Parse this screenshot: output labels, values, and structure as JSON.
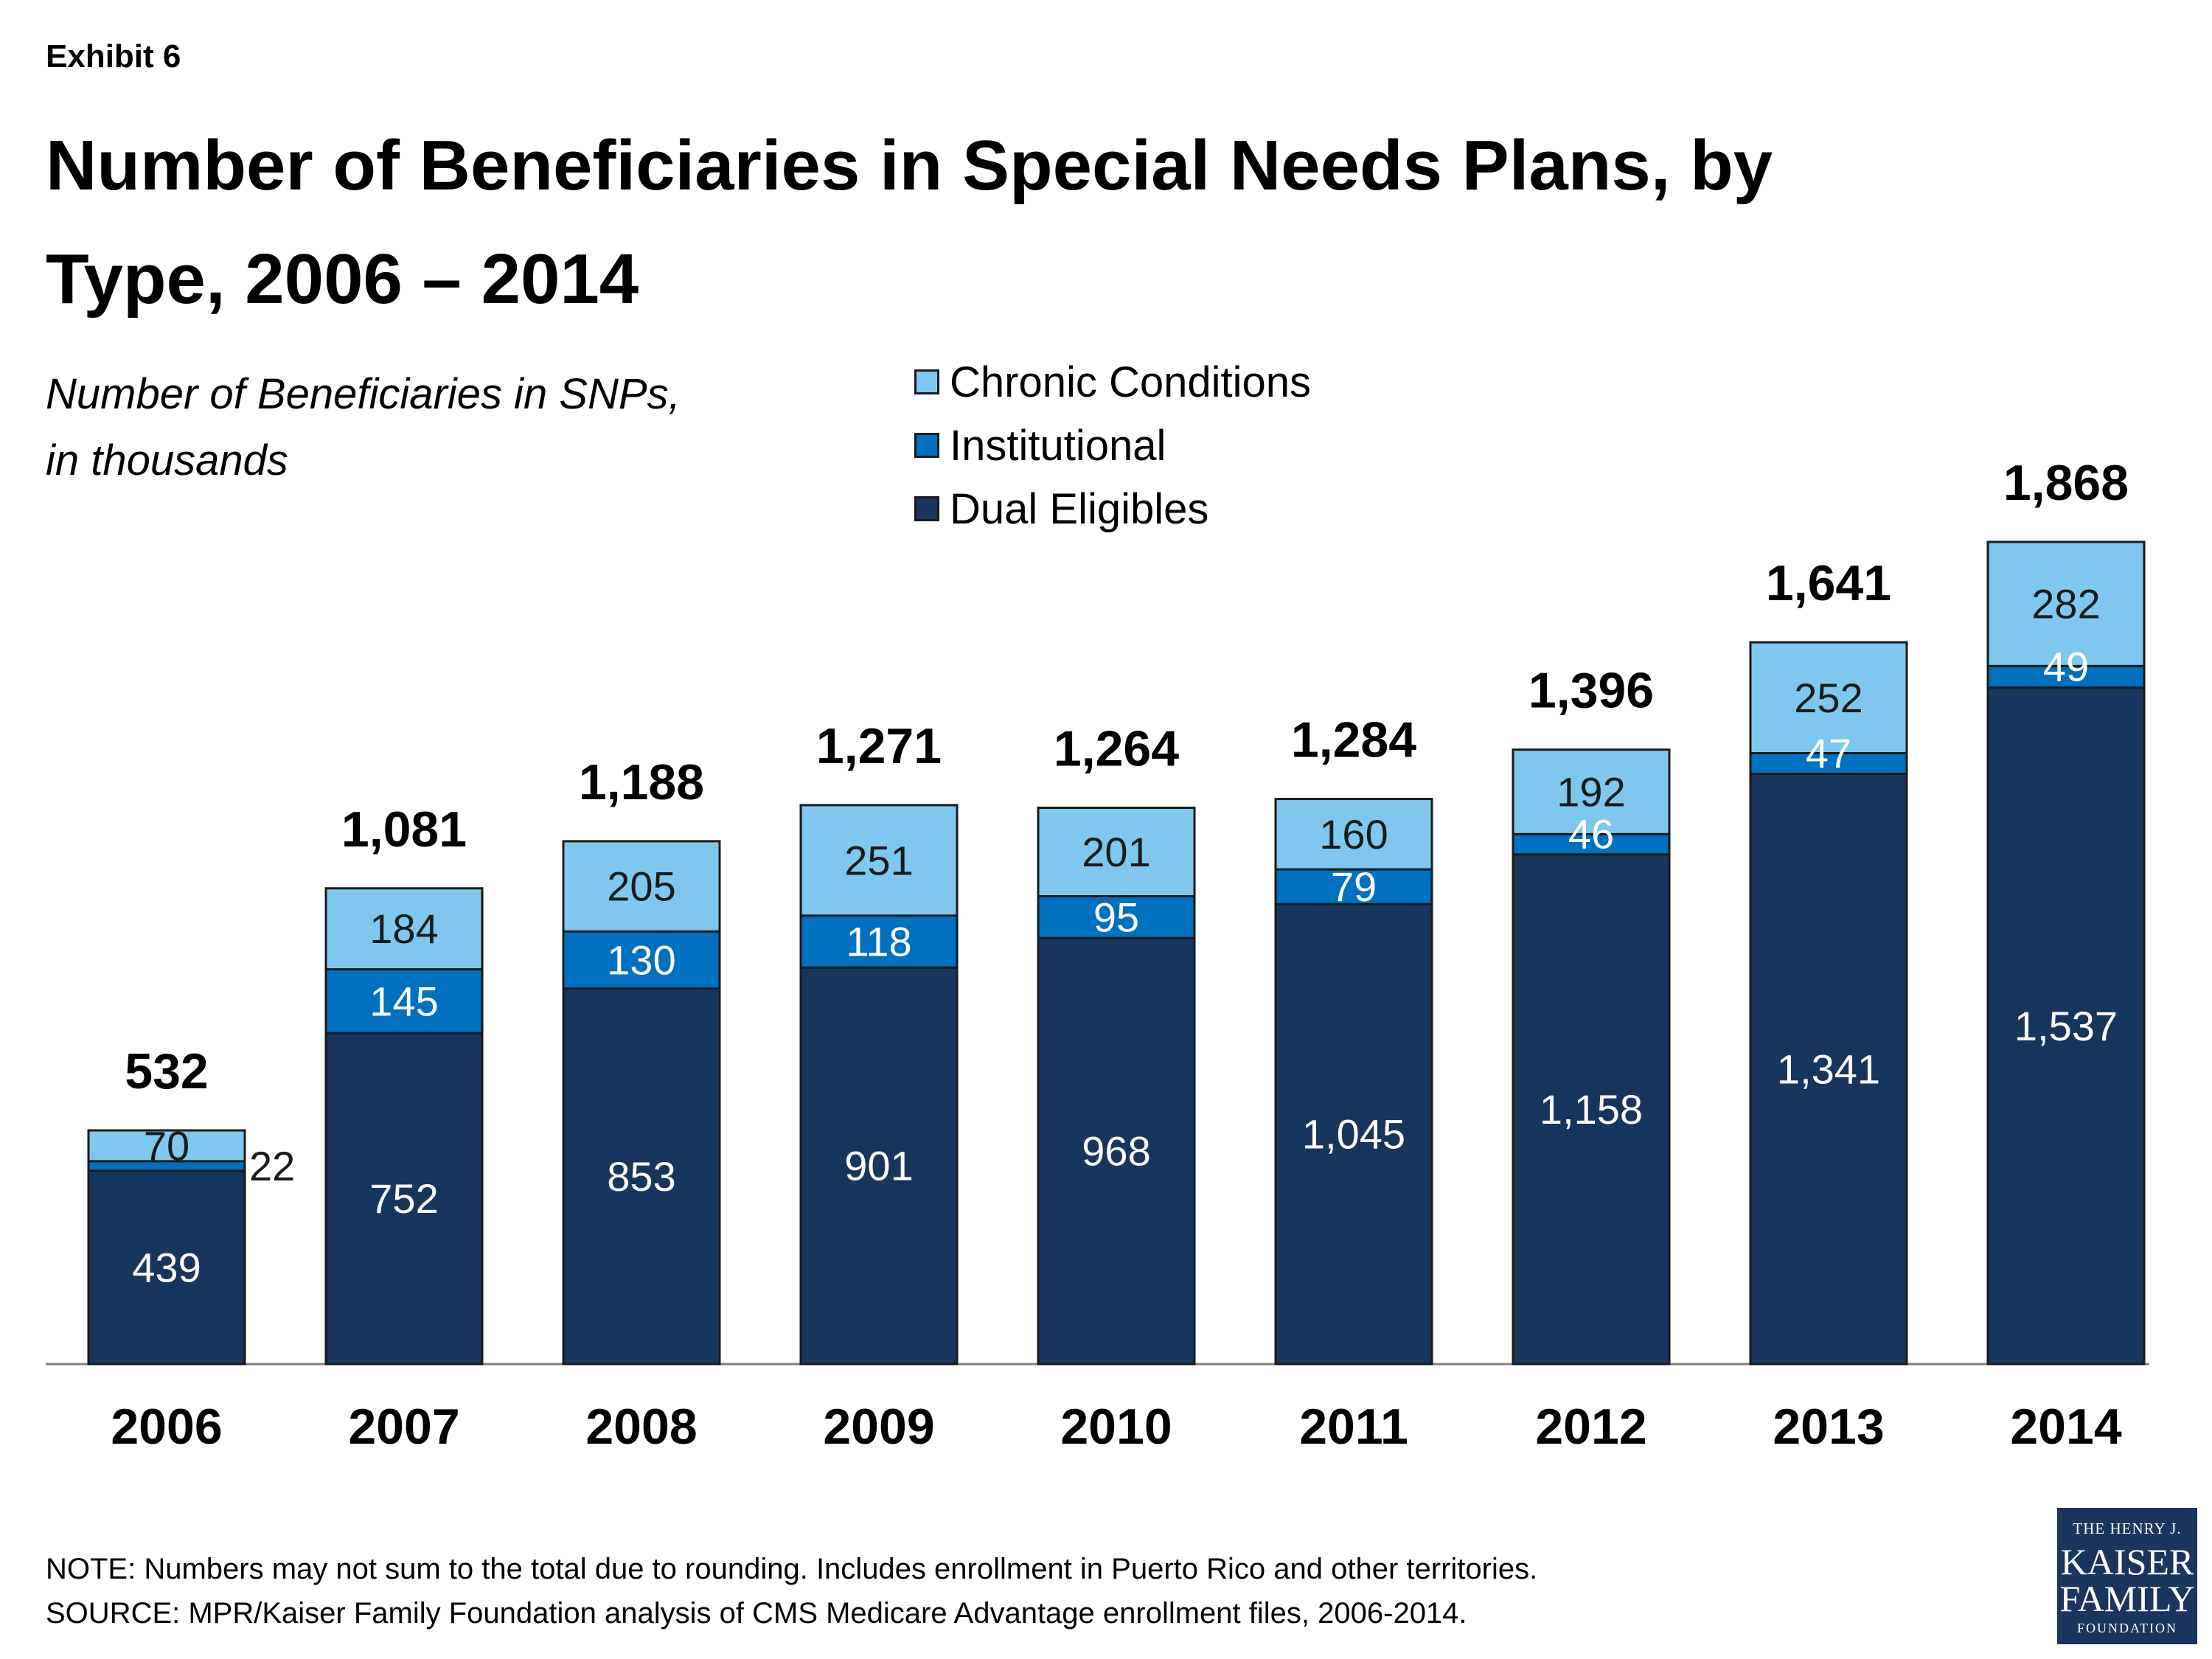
{
  "header": {
    "exhibit": "Exhibit 6",
    "title": "Number of Beneficiaries in Special Needs Plans, by Type, 2006 – 2014",
    "subtitle_line1": "Number of Beneficiaries in SNPs,",
    "subtitle_line2": "in thousands"
  },
  "chart_data": {
    "type": "bar",
    "stacked": true,
    "categories": [
      "2006",
      "2007",
      "2008",
      "2009",
      "2010",
      "2011",
      "2012",
      "2013",
      "2014"
    ],
    "series": [
      {
        "name": "Dual Eligibles",
        "color": "#17365d",
        "label_color": "#ffffff",
        "values": [
          439,
          752,
          853,
          901,
          968,
          1045,
          1158,
          1341,
          1537
        ],
        "labels": [
          "439",
          "752",
          "853",
          "901",
          "968",
          "1,045",
          "1,158",
          "1,341",
          "1,537"
        ]
      },
      {
        "name": "Institutional",
        "color": "#0070c0",
        "label_color": "#ffffff",
        "values": [
          22,
          145,
          130,
          118,
          95,
          79,
          46,
          47,
          49
        ],
        "labels": [
          "22",
          "145",
          "130",
          "118",
          "95",
          "79",
          "46",
          "47",
          "49"
        ]
      },
      {
        "name": "Chronic Conditions",
        "color": "#7ec8f0",
        "label_color": "#1a1a1a",
        "values": [
          70,
          184,
          205,
          251,
          201,
          160,
          192,
          252,
          282
        ],
        "labels": [
          "70",
          "184",
          "205",
          "251",
          "201",
          "160",
          "192",
          "252",
          "282"
        ]
      }
    ],
    "totals": [
      532,
      1081,
      1188,
      1271,
      1264,
      1284,
      1396,
      1641,
      1868
    ],
    "total_labels": [
      "532",
      "1,081",
      "1,188",
      "1,271",
      "1,264",
      "1,284",
      "1,396",
      "1,641",
      "1,868"
    ],
    "ylim": [
      0,
      1900
    ],
    "legend_position": "top-center",
    "grid": false
  },
  "legend": {
    "items": [
      {
        "label": "Chronic Conditions",
        "color": "#7ec8f0"
      },
      {
        "label": "Institutional",
        "color": "#0070c0"
      },
      {
        "label": "Dual Eligibles",
        "color": "#17365d"
      }
    ]
  },
  "footer": {
    "note": "NOTE:  Numbers may not sum to the total due to rounding.   Includes enrollment in Puerto Rico and other territories.",
    "source": "SOURCE:  MPR/Kaiser Family Foundation analysis of CMS Medicare Advantage enrollment files, 2006-2014."
  },
  "logo": {
    "line1": "THE HENRY J.",
    "line2": "KAISER",
    "line3": "FAMILY",
    "line4": "FOUNDATION"
  }
}
